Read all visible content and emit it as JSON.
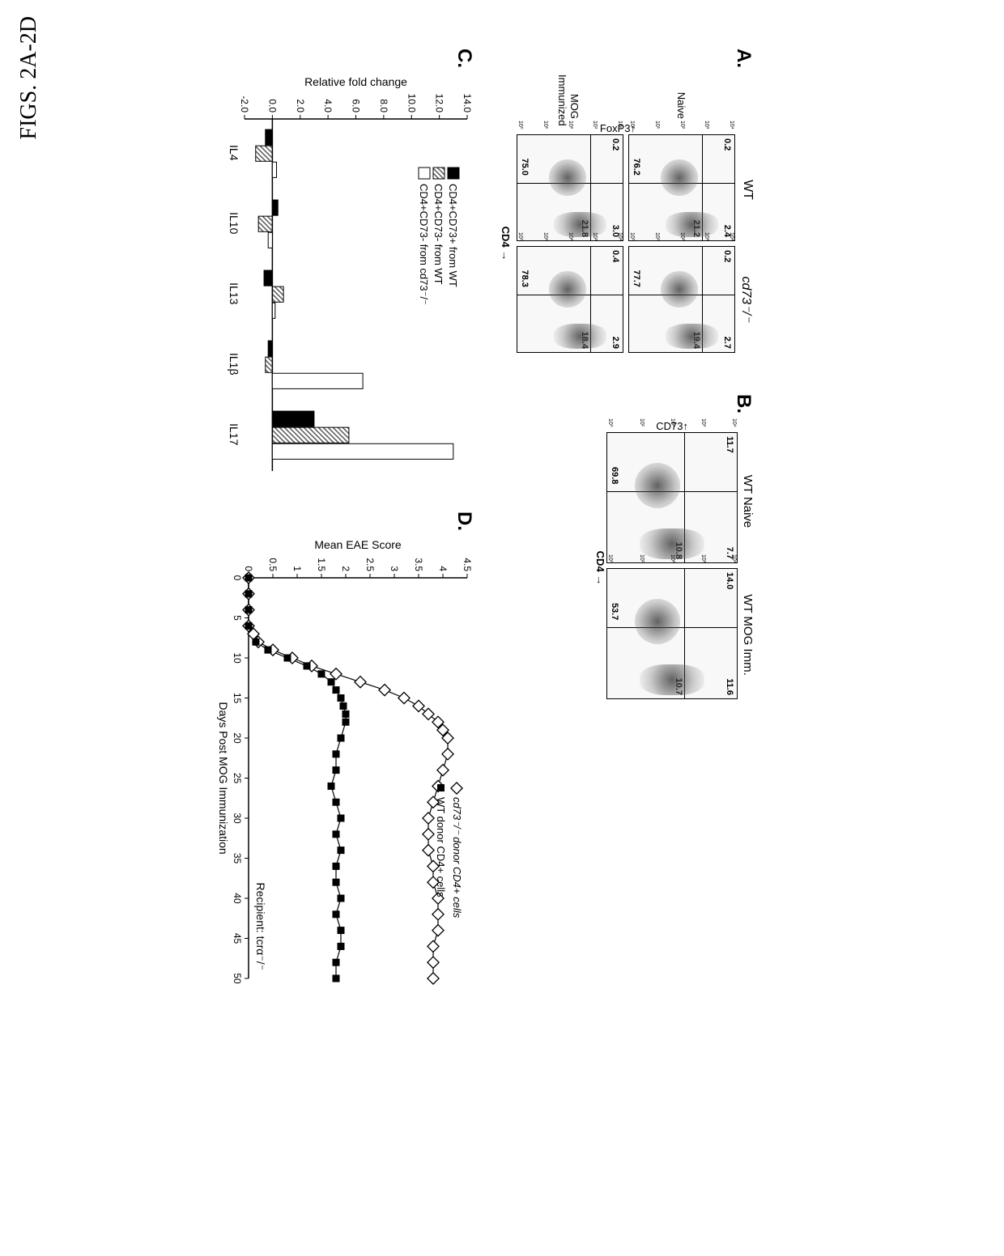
{
  "figure_label": "FIGS. 2A-2D",
  "panel_a": {
    "label": "A.",
    "col_headers": [
      "WT",
      "cd73⁻/⁻"
    ],
    "row_headers": [
      "Naive",
      "MOG\nImmunized"
    ],
    "y_axis": "FoxP3",
    "x_axis": "CD4",
    "plots": [
      {
        "q1": "0.2",
        "q2": "2.4",
        "q3": "76.2",
        "q4": "21.2"
      },
      {
        "q1": "0.2",
        "q2": "2.7",
        "q3": "77.7",
        "q4": "19.4"
      },
      {
        "q1": "0.2",
        "q2": "3.0",
        "q3": "75.0",
        "q4": "21.8"
      },
      {
        "q1": "0.4",
        "q2": "2.9",
        "q3": "78.3",
        "q4": "18.4"
      }
    ]
  },
  "panel_b": {
    "label": "B.",
    "col_headers": [
      "WT Naive",
      "WT MOG Imm."
    ],
    "y_axis": "CD73",
    "x_axis": "CD4",
    "plots": [
      {
        "q1": "11.7",
        "q2": "7.7",
        "q3": "69.8",
        "q4": "10.8"
      },
      {
        "q1": "14.0",
        "q2": "11.6",
        "q3": "53.7",
        "q4": "10.7"
      }
    ]
  },
  "panel_c": {
    "label": "C.",
    "y_axis": "Relative fold change",
    "y_ticks": [
      "-2.0",
      "0.0",
      "2.0",
      "4.0",
      "6.0",
      "8.0",
      "10.0",
      "12.0",
      "14.0"
    ],
    "ylim": [
      -2,
      14
    ],
    "categories": [
      "IL4",
      "IL10",
      "IL13",
      "IL1β",
      "IL17"
    ],
    "legend": [
      {
        "label": "CD4+CD73+ from WT",
        "fill": "#000000",
        "pattern": "solid"
      },
      {
        "label": "CD4+CD73- from WT",
        "fill": "#888888",
        "pattern": "hatch"
      },
      {
        "label": "CD4+CD73- from cd73⁻/⁻",
        "fill": "#ffffff",
        "pattern": "solid"
      }
    ],
    "data": {
      "IL4": [
        -0.5,
        -1.2,
        0.3
      ],
      "IL10": [
        0.4,
        -1.0,
        -0.3
      ],
      "IL13": [
        -0.6,
        0.8,
        0.2
      ],
      "IL1β": [
        -0.3,
        -0.5,
        6.5
      ],
      "IL17": [
        3.0,
        5.5,
        13.0
      ]
    },
    "bar_colors": [
      "#000000",
      "#9a9a9a",
      "#ffffff"
    ]
  },
  "panel_d": {
    "label": "D.",
    "y_axis": "Mean EAE Score",
    "x_axis": "Days Post MOG Immunization",
    "recipient_label": "Recipient: tcrα⁻/⁻",
    "y_ticks": [
      "0",
      "0.5",
      "1",
      "1.5",
      "2",
      "2.5",
      "3",
      "3.5",
      "4",
      "4.5"
    ],
    "x_ticks": [
      "0",
      "5",
      "10",
      "15",
      "20",
      "25",
      "30",
      "35",
      "40",
      "45",
      "50"
    ],
    "ylim": [
      0,
      4.5
    ],
    "xlim": [
      0,
      50
    ],
    "legend": [
      {
        "label": "cd73⁻/⁻ donor CD4+ cells",
        "marker": "diamond-open",
        "color": "#000000"
      },
      {
        "label": "WT donor CD4+ cells",
        "marker": "square-filled",
        "color": "#000000"
      }
    ],
    "series_cd73": [
      [
        0,
        0
      ],
      [
        2,
        0
      ],
      [
        4,
        0
      ],
      [
        6,
        0
      ],
      [
        7,
        0.1
      ],
      [
        8,
        0.2
      ],
      [
        9,
        0.5
      ],
      [
        10,
        0.9
      ],
      [
        11,
        1.3
      ],
      [
        12,
        1.8
      ],
      [
        13,
        2.3
      ],
      [
        14,
        2.8
      ],
      [
        15,
        3.2
      ],
      [
        16,
        3.5
      ],
      [
        17,
        3.7
      ],
      [
        18,
        3.9
      ],
      [
        19,
        4.0
      ],
      [
        20,
        4.1
      ],
      [
        22,
        4.1
      ],
      [
        24,
        4.0
      ],
      [
        26,
        3.9
      ],
      [
        28,
        3.8
      ],
      [
        30,
        3.7
      ],
      [
        32,
        3.7
      ],
      [
        34,
        3.7
      ],
      [
        36,
        3.8
      ],
      [
        38,
        3.8
      ],
      [
        40,
        3.9
      ],
      [
        42,
        3.9
      ],
      [
        44,
        3.9
      ],
      [
        46,
        3.8
      ],
      [
        48,
        3.8
      ],
      [
        50,
        3.8
      ]
    ],
    "series_wt": [
      [
        0,
        0
      ],
      [
        2,
        0
      ],
      [
        4,
        0
      ],
      [
        6,
        0
      ],
      [
        8,
        0.15
      ],
      [
        9,
        0.4
      ],
      [
        10,
        0.8
      ],
      [
        11,
        1.2
      ],
      [
        12,
        1.5
      ],
      [
        13,
        1.7
      ],
      [
        14,
        1.8
      ],
      [
        15,
        1.9
      ],
      [
        16,
        1.95
      ],
      [
        17,
        2.0
      ],
      [
        18,
        2.0
      ],
      [
        20,
        1.9
      ],
      [
        22,
        1.8
      ],
      [
        24,
        1.8
      ],
      [
        26,
        1.7
      ],
      [
        28,
        1.8
      ],
      [
        30,
        1.9
      ],
      [
        32,
        1.8
      ],
      [
        34,
        1.9
      ],
      [
        36,
        1.8
      ],
      [
        38,
        1.8
      ],
      [
        40,
        1.9
      ],
      [
        42,
        1.8
      ],
      [
        44,
        1.9
      ],
      [
        46,
        1.9
      ],
      [
        48,
        1.8
      ],
      [
        50,
        1.8
      ]
    ]
  },
  "colors": {
    "black": "#000000",
    "gray": "#808080",
    "white": "#ffffff"
  }
}
